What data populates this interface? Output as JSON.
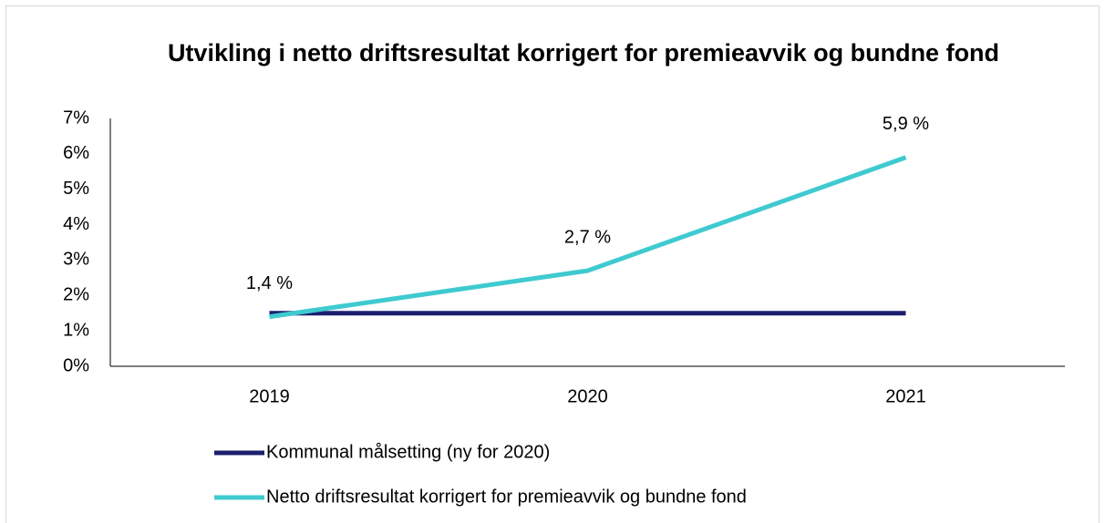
{
  "chart_data": {
    "type": "line",
    "title": "Utvikling i netto driftsresultat korrigert for premieavvik og bundne fond",
    "categories": [
      "2019",
      "2020",
      "2021"
    ],
    "series": [
      {
        "name": "Kommunal målsetting (ny for 2020)",
        "color": "#1b1f6e",
        "values": [
          1.5,
          1.5,
          1.5
        ]
      },
      {
        "name": "Netto driftsresultat korrigert for premieavvik og bundne fond",
        "color": "#3fcad0",
        "values": [
          1.4,
          2.7,
          5.9
        ],
        "value_labels": [
          "1,4 %",
          "2,7 %",
          "5,9 %"
        ]
      }
    ],
    "ylim": [
      0,
      7
    ],
    "yticks": [
      {
        "value": 0,
        "label": "0%"
      },
      {
        "value": 1,
        "label": "1%"
      },
      {
        "value": 2,
        "label": "2%"
      },
      {
        "value": 3,
        "label": "3%"
      },
      {
        "value": 4,
        "label": "4%"
      },
      {
        "value": 5,
        "label": "5%"
      },
      {
        "value": 6,
        "label": "6%"
      },
      {
        "value": 7,
        "label": "7%"
      }
    ],
    "legend": "bottom"
  }
}
